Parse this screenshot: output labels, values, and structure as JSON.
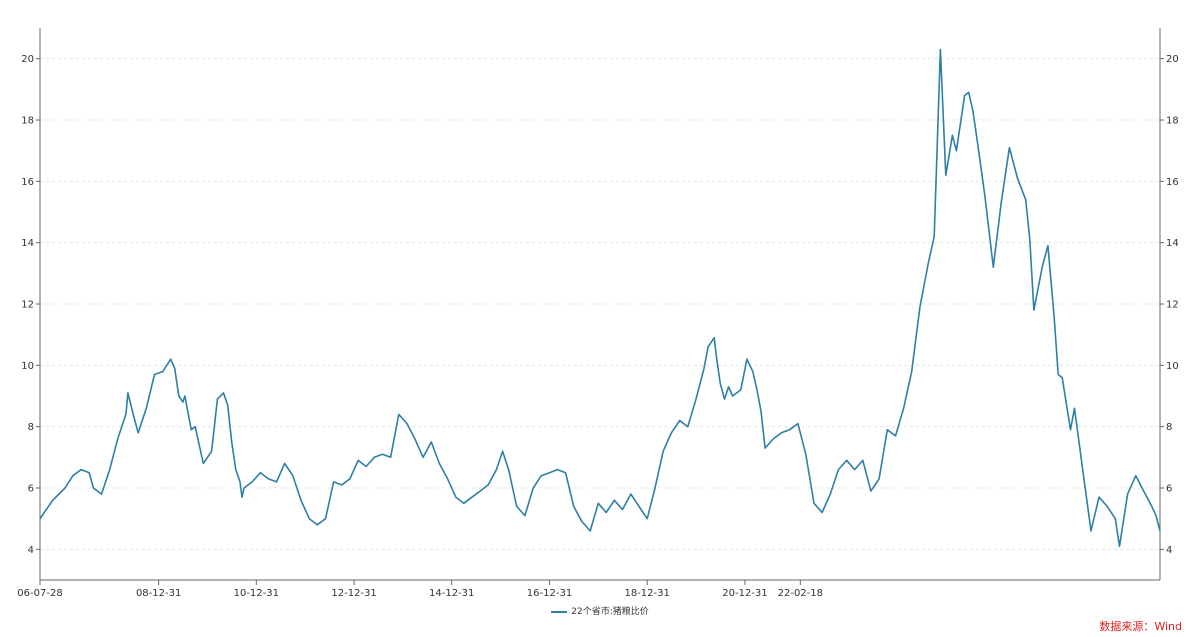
{
  "chart_data": {
    "type": "line",
    "title": "",
    "xlabel": "",
    "ylabel": "",
    "ylim": [
      3,
      21
    ],
    "yticks": [
      4,
      6,
      8,
      10,
      12,
      14,
      16,
      18,
      20
    ],
    "xticks": [
      "06-07-28",
      "08-12-31",
      "10-12-31",
      "12-12-31",
      "14-12-31",
      "16-12-31",
      "18-12-31",
      "20-12-31",
      "22-02-18"
    ],
    "grid": "horizontal dashed",
    "legend_position": "bottom-center",
    "series": [
      {
        "name": "22个省市:猪粮比价",
        "color": "#2e7fa6",
        "points": [
          [
            "2006-07-28",
            5.0
          ],
          [
            "2006-10-31",
            5.6
          ],
          [
            "2007-01-31",
            6.0
          ],
          [
            "2007-03-31",
            6.4
          ],
          [
            "2007-05-31",
            6.6
          ],
          [
            "2007-07-31",
            6.5
          ],
          [
            "2007-08-31",
            6.0
          ],
          [
            "2007-10-31",
            5.8
          ],
          [
            "2007-12-31",
            6.6
          ],
          [
            "2008-02-29",
            7.6
          ],
          [
            "2008-04-30",
            8.4
          ],
          [
            "2008-05-15",
            9.1
          ],
          [
            "2008-06-30",
            8.3
          ],
          [
            "2008-07-31",
            7.8
          ],
          [
            "2008-09-30",
            8.6
          ],
          [
            "2008-11-30",
            9.7
          ],
          [
            "2009-01-31",
            9.8
          ],
          [
            "2009-03-31",
            10.2
          ],
          [
            "2009-04-30",
            9.9
          ],
          [
            "2009-05-31",
            9.0
          ],
          [
            "2009-06-30",
            8.8
          ],
          [
            "2009-07-15",
            9.0
          ],
          [
            "2009-08-31",
            7.9
          ],
          [
            "2009-09-30",
            8.0
          ],
          [
            "2009-11-30",
            6.8
          ],
          [
            "2010-01-31",
            7.2
          ],
          [
            "2010-03-15",
            8.9
          ],
          [
            "2010-04-30",
            9.1
          ],
          [
            "2010-05-31",
            8.7
          ],
          [
            "2010-06-30",
            7.5
          ],
          [
            "2010-07-31",
            6.6
          ],
          [
            "2010-08-31",
            6.2
          ],
          [
            "2010-09-15",
            5.7
          ],
          [
            "2010-09-30",
            6.0
          ],
          [
            "2010-11-30",
            6.2
          ],
          [
            "2011-01-31",
            6.5
          ],
          [
            "2011-03-31",
            6.3
          ],
          [
            "2011-05-31",
            6.2
          ],
          [
            "2011-07-31",
            6.8
          ],
          [
            "2011-09-30",
            6.4
          ],
          [
            "2011-11-30",
            5.6
          ],
          [
            "2012-01-31",
            5.0
          ],
          [
            "2012-03-31",
            4.8
          ],
          [
            "2012-05-31",
            5.0
          ],
          [
            "2012-07-31",
            6.2
          ],
          [
            "2012-09-30",
            6.1
          ],
          [
            "2012-11-30",
            6.3
          ],
          [
            "2013-01-31",
            6.9
          ],
          [
            "2013-03-31",
            6.7
          ],
          [
            "2013-05-31",
            7.0
          ],
          [
            "2013-07-31",
            7.1
          ],
          [
            "2013-09-30",
            7.0
          ],
          [
            "2013-11-30",
            8.4
          ],
          [
            "2014-01-31",
            8.1
          ],
          [
            "2014-03-31",
            7.6
          ],
          [
            "2014-05-31",
            7.0
          ],
          [
            "2014-07-31",
            7.5
          ],
          [
            "2014-09-30",
            6.8
          ],
          [
            "2014-11-30",
            6.3
          ],
          [
            "2015-01-31",
            5.7
          ],
          [
            "2015-03-31",
            5.5
          ],
          [
            "2015-05-31",
            5.7
          ],
          [
            "2015-07-31",
            5.9
          ],
          [
            "2015-09-30",
            6.1
          ],
          [
            "2015-11-30",
            6.6
          ],
          [
            "2016-01-15",
            7.2
          ],
          [
            "2016-02-29",
            6.6
          ],
          [
            "2016-04-30",
            5.4
          ],
          [
            "2016-06-30",
            5.1
          ],
          [
            "2016-08-31",
            6.0
          ],
          [
            "2016-10-31",
            6.4
          ],
          [
            "2016-12-31",
            6.5
          ],
          [
            "2017-02-28",
            6.6
          ],
          [
            "2017-04-30",
            6.5
          ],
          [
            "2017-06-30",
            5.4
          ],
          [
            "2017-08-31",
            4.9
          ],
          [
            "2017-10-31",
            4.6
          ],
          [
            "2017-12-31",
            5.5
          ],
          [
            "2018-02-28",
            5.2
          ],
          [
            "2018-04-30",
            5.6
          ],
          [
            "2018-06-30",
            5.3
          ],
          [
            "2018-08-31",
            5.8
          ],
          [
            "2018-10-31",
            5.4
          ],
          [
            "2018-12-31",
            5.0
          ],
          [
            "2019-02-28",
            6.0
          ],
          [
            "2019-04-30",
            7.2
          ],
          [
            "2019-06-30",
            7.8
          ],
          [
            "2019-08-31",
            8.2
          ],
          [
            "2019-10-31",
            8.0
          ],
          [
            "2019-12-31",
            8.9
          ],
          [
            "2020-02-29",
            9.9
          ],
          [
            "2020-03-31",
            10.6
          ],
          [
            "2020-05-15",
            10.9
          ],
          [
            "2020-05-31",
            10.3
          ],
          [
            "2020-06-30",
            9.4
          ],
          [
            "2020-07-31",
            8.9
          ],
          [
            "2020-08-31",
            9.3
          ],
          [
            "2020-09-30",
            9.0
          ],
          [
            "2020-11-30",
            9.2
          ],
          [
            "2021-01-15",
            10.2
          ],
          [
            "2021-02-28",
            9.8
          ],
          [
            "2021-03-31",
            9.2
          ],
          [
            "2021-04-30",
            8.5
          ],
          [
            "2021-05-31",
            7.3
          ],
          [
            "2021-07-31",
            7.6
          ],
          [
            "2021-09-30",
            7.8
          ],
          [
            "2021-11-30",
            7.9
          ],
          [
            "2022-01-31",
            8.1
          ],
          [
            "2022-03-31",
            7.1
          ],
          [
            "2022-05-31",
            5.5
          ],
          [
            "2022-07-31",
            5.2
          ],
          [
            "2022-09-30",
            5.8
          ],
          [
            "2022-11-30",
            6.6
          ],
          [
            "2023-01-31",
            6.9
          ],
          [
            "2023-03-31",
            6.6
          ],
          [
            "2023-05-31",
            6.9
          ],
          [
            "2023-07-31",
            5.9
          ],
          [
            "2023-09-30",
            6.3
          ],
          [
            "2023-11-30",
            7.9
          ],
          [
            "2024-01-31",
            7.7
          ],
          [
            "2024-03-31",
            8.6
          ],
          [
            "2024-05-31",
            9.8
          ],
          [
            "2024-07-31",
            11.9
          ],
          [
            "2024-09-30",
            13.3
          ],
          [
            "2024-11-15",
            14.2
          ],
          [
            "2024-12-31",
            20.3
          ],
          [
            "2025-02-10",
            16.2
          ],
          [
            "2025-03-31",
            17.5
          ],
          [
            "2025-04-30",
            17.0
          ],
          [
            "2025-06-30",
            18.8
          ],
          [
            "2025-07-31",
            18.9
          ],
          [
            "2025-08-31",
            18.3
          ],
          [
            "2025-09-30",
            17.4
          ],
          [
            "2025-11-30",
            15.5
          ],
          [
            "2026-01-31",
            13.2
          ],
          [
            "2026-03-31",
            15.3
          ],
          [
            "2026-05-31",
            17.1
          ],
          [
            "2026-07-31",
            16.1
          ],
          [
            "2026-09-30",
            15.4
          ],
          [
            "2026-10-31",
            14.1
          ],
          [
            "2026-11-30",
            11.8
          ],
          [
            "2027-01-31",
            13.2
          ],
          [
            "2027-03-15",
            13.9
          ],
          [
            "2027-04-30",
            11.6
          ],
          [
            "2027-05-31",
            9.7
          ],
          [
            "2027-06-30",
            9.6
          ],
          [
            "2027-08-31",
            7.9
          ],
          [
            "2027-09-30",
            8.6
          ],
          [
            "2027-11-30",
            6.6
          ],
          [
            "2028-01-31",
            4.6
          ],
          [
            "2028-03-31",
            5.7
          ],
          [
            "2028-05-31",
            5.4
          ],
          [
            "2028-07-31",
            5.0
          ],
          [
            "2028-08-31",
            4.1
          ],
          [
            "2028-10-31",
            5.8
          ],
          [
            "2028-12-31",
            6.4
          ],
          [
            "2029-02-28",
            5.9
          ],
          [
            "2029-04-30",
            5.4
          ],
          [
            "2029-05-31",
            5.1
          ],
          [
            "2029-06-30",
            4.6
          ]
        ]
      }
    ]
  },
  "legend": {
    "label": "22个省市:猪粮比价",
    "color": "#2e7fa6"
  },
  "source": {
    "label": "数据来源：Wind",
    "color": "#e02020"
  }
}
